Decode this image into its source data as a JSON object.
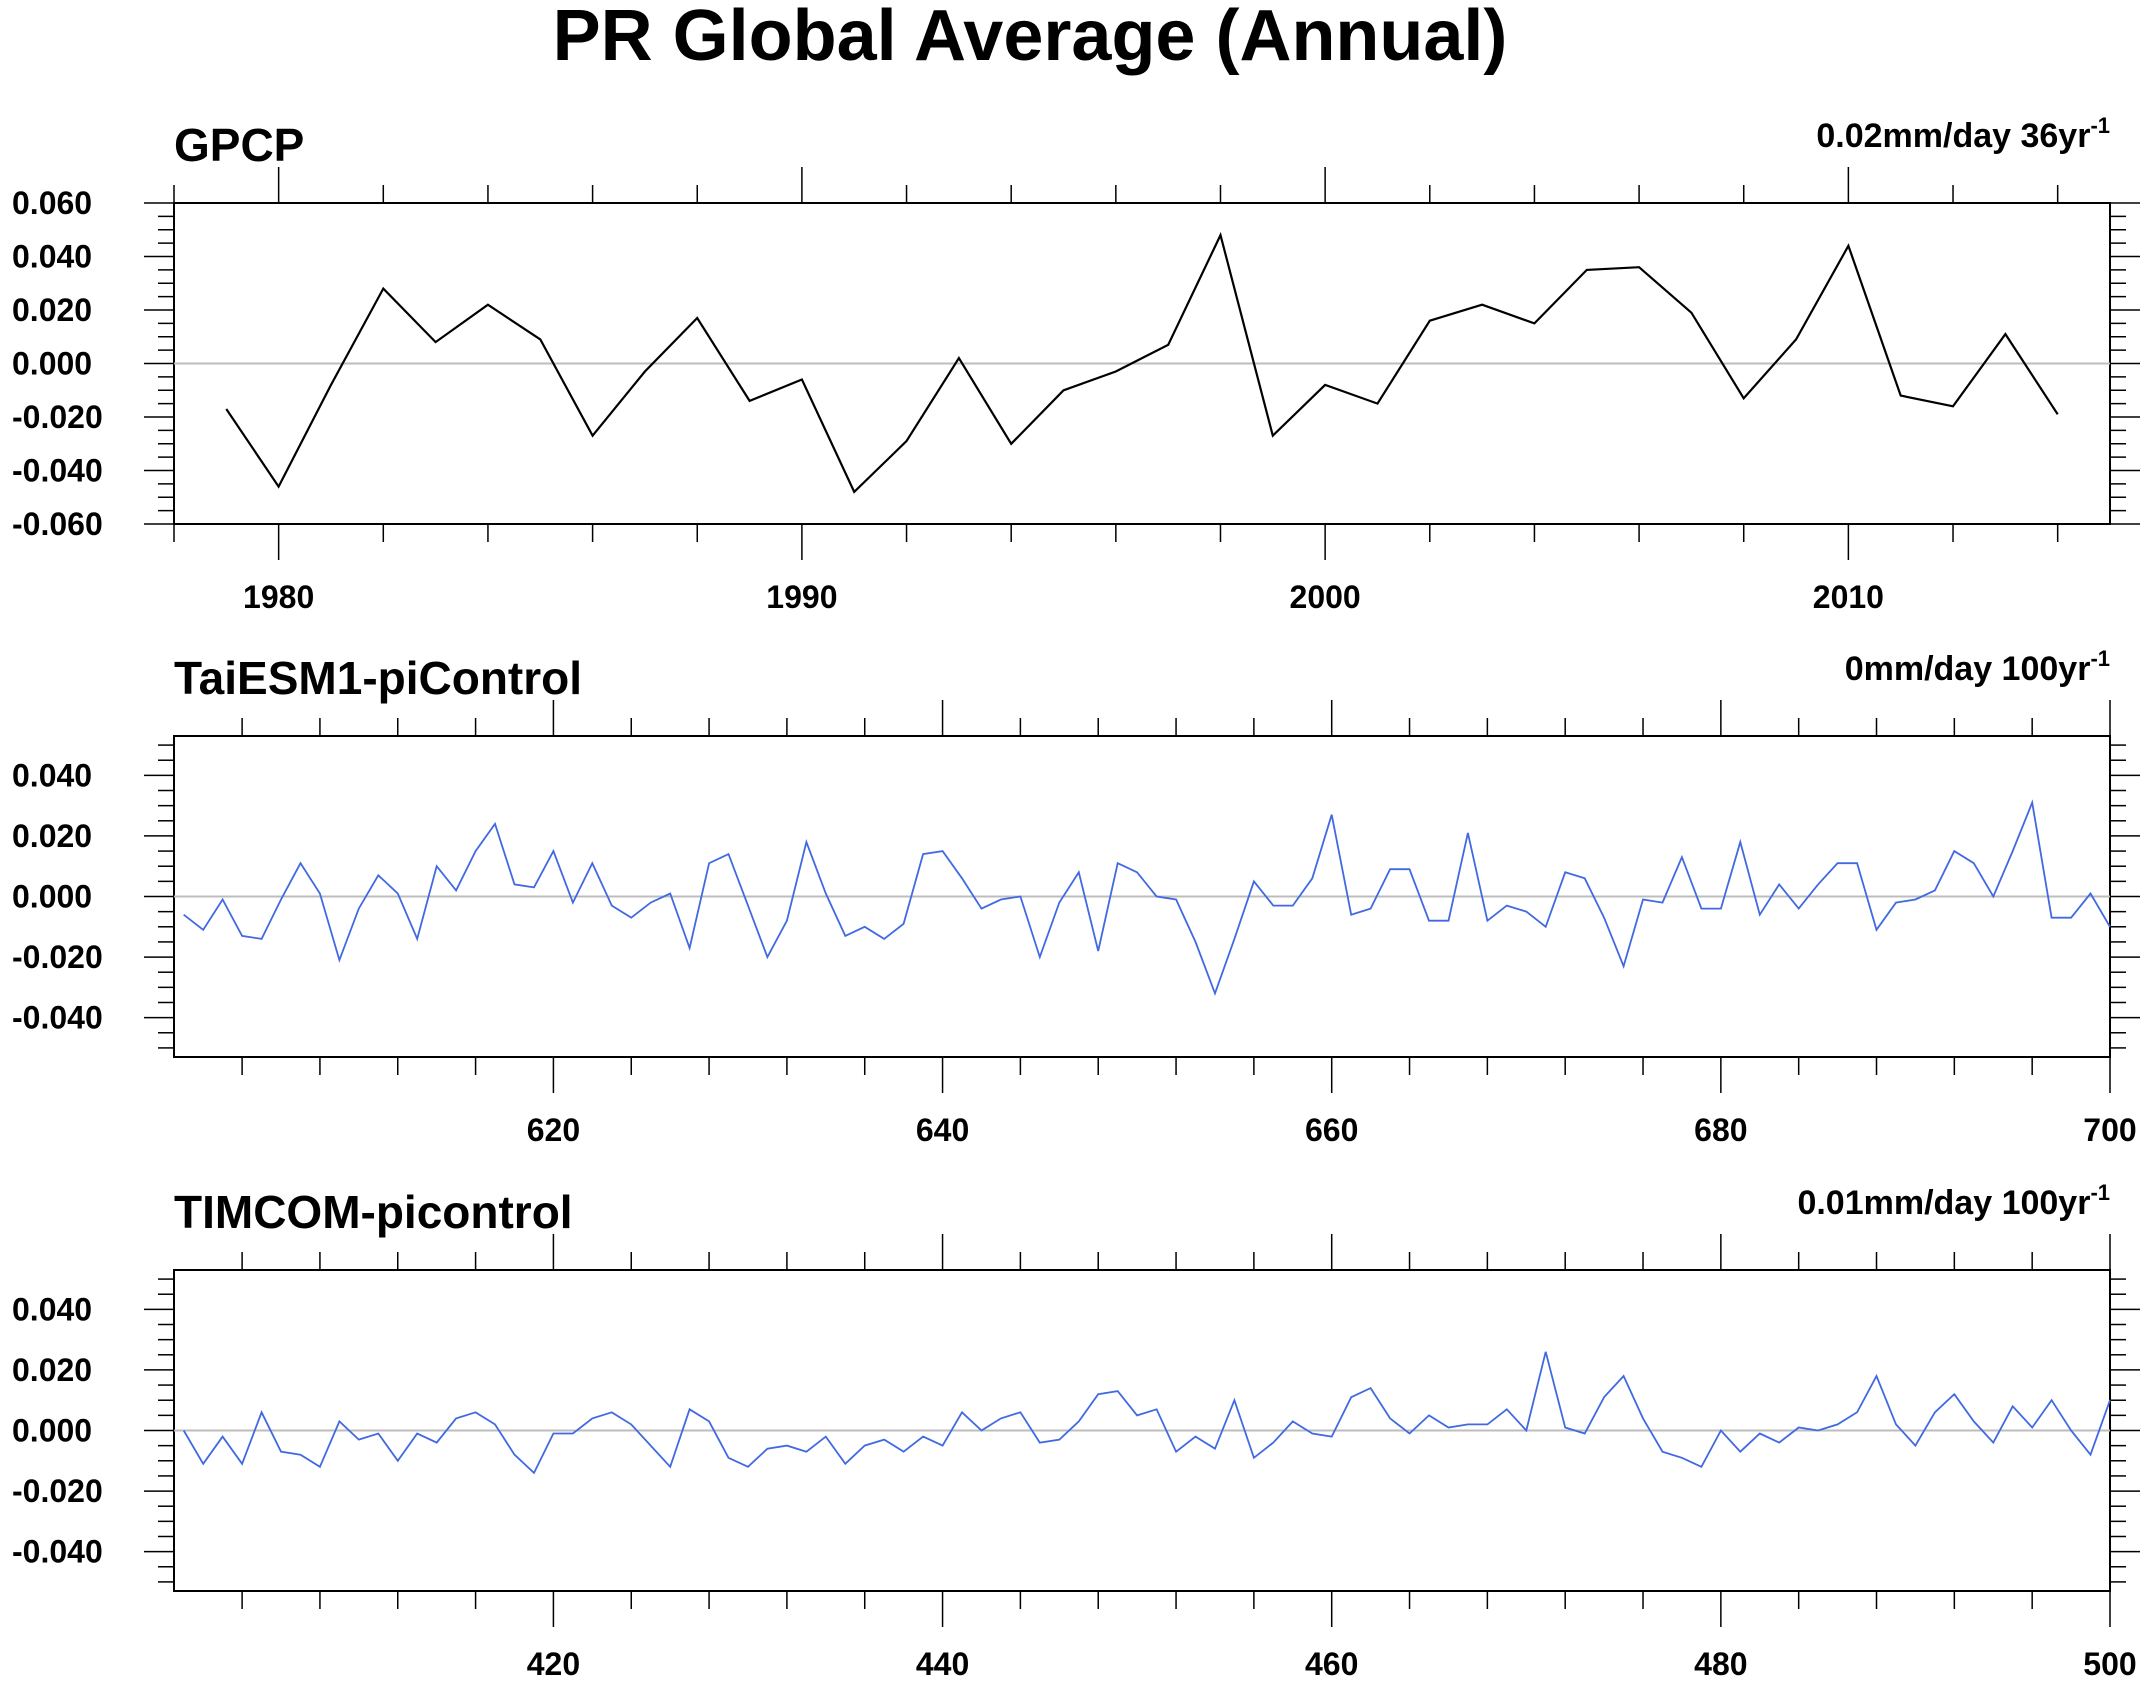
{
  "title": "PR Global Average (Annual)",
  "chart_data": [
    {
      "type": "line",
      "title": "GPCP",
      "trend_label": "0.02mm/day 36yr",
      "trend_superscript": "-1",
      "color": "#000000",
      "xlim": [
        1978,
        2015
      ],
      "ylim": [
        -0.06,
        0.06
      ],
      "xticks": [
        1980,
        1990,
        2000,
        2010
      ],
      "xtick_labels": [
        "1980",
        "1990",
        "2000",
        "2010"
      ],
      "yticks": [
        -0.06,
        -0.04,
        -0.02,
        0.0,
        0.02,
        0.04,
        0.06
      ],
      "ytick_labels": [
        "-0.060",
        "-0.040",
        "-0.020",
        "0.000",
        "0.020",
        "0.040",
        "0.060"
      ],
      "zero_line": true,
      "x_start": 1979,
      "values": [
        -0.017,
        -0.046,
        -0.008,
        0.028,
        0.008,
        0.022,
        0.009,
        -0.027,
        -0.003,
        0.017,
        -0.014,
        -0.006,
        -0.048,
        -0.029,
        0.002,
        -0.03,
        -0.01,
        -0.003,
        0.007,
        0.048,
        -0.027,
        -0.008,
        -0.015,
        0.016,
        0.022,
        0.015,
        0.035,
        0.036,
        0.019,
        -0.013,
        0.009,
        0.044,
        -0.012,
        -0.016,
        0.011,
        -0.019
      ]
    },
    {
      "type": "line",
      "title": "TaiESM1-piControl",
      "trend_label": "0mm/day 100yr",
      "trend_superscript": "-1",
      "color": "#4169e1",
      "xlim": [
        600.5,
        700
      ],
      "ylim": [
        -0.053,
        0.053
      ],
      "xticks": [
        620,
        640,
        660,
        680,
        700
      ],
      "xtick_labels": [
        "620",
        "640",
        "660",
        "680",
        "700"
      ],
      "yticks": [
        -0.04,
        -0.02,
        0.0,
        0.02,
        0.04
      ],
      "ytick_labels": [
        "-0.040",
        "-0.020",
        "0.000",
        "0.020",
        "0.040"
      ],
      "zero_line": true,
      "x_start": 601,
      "values": [
        -0.006,
        -0.011,
        -0.001,
        -0.013,
        -0.014,
        -0.001,
        0.011,
        0.001,
        -0.021,
        -0.004,
        0.007,
        0.001,
        -0.014,
        0.01,
        0.002,
        0.015,
        0.024,
        0.004,
        0.003,
        0.015,
        -0.002,
        0.011,
        -0.003,
        -0.007,
        -0.002,
        0.001,
        -0.017,
        0.011,
        0.014,
        -0.003,
        -0.02,
        -0.008,
        0.018,
        0.001,
        -0.013,
        -0.01,
        -0.014,
        -0.009,
        0.014,
        0.015,
        0.006,
        -0.004,
        -0.001,
        0.0,
        -0.02,
        -0.002,
        0.008,
        -0.018,
        0.011,
        0.008,
        0.0,
        -0.001,
        -0.015,
        -0.032,
        -0.014,
        0.005,
        -0.003,
        -0.003,
        0.006,
        0.027,
        -0.006,
        -0.004,
        0.009,
        0.009,
        -0.008,
        -0.008,
        0.021,
        -0.008,
        -0.003,
        -0.005,
        -0.01,
        0.008,
        0.006,
        -0.007,
        -0.023,
        -0.001,
        -0.002,
        0.013,
        -0.004,
        -0.004,
        0.018,
        -0.006,
        0.004,
        -0.004,
        0.004,
        0.011,
        0.011,
        -0.011,
        -0.002,
        -0.001,
        0.002,
        0.015,
        0.011,
        0.0,
        0.015,
        0.031,
        -0.007,
        -0.007,
        0.001,
        -0.01
      ]
    },
    {
      "type": "line",
      "title": "TIMCOM-picontrol",
      "trend_label": "0.01mm/day 100yr",
      "trend_superscript": "-1",
      "color": "#4169e1",
      "xlim": [
        400.5,
        500
      ],
      "ylim": [
        -0.053,
        0.053
      ],
      "xticks": [
        420,
        440,
        460,
        480,
        500
      ],
      "xtick_labels": [
        "420",
        "440",
        "460",
        "480",
        "500"
      ],
      "yticks": [
        -0.04,
        -0.02,
        0.0,
        0.02,
        0.04
      ],
      "ytick_labels": [
        "-0.040",
        "-0.020",
        "0.000",
        "0.020",
        "0.040"
      ],
      "zero_line": true,
      "x_start": 401,
      "values": [
        0.0,
        -0.011,
        -0.002,
        -0.011,
        0.006,
        -0.007,
        -0.008,
        -0.012,
        0.003,
        -0.003,
        -0.001,
        -0.01,
        -0.001,
        -0.004,
        0.004,
        0.006,
        0.002,
        -0.008,
        -0.014,
        -0.001,
        -0.001,
        0.004,
        0.006,
        0.002,
        -0.005,
        -0.012,
        0.007,
        0.003,
        -0.009,
        -0.012,
        -0.006,
        -0.005,
        -0.007,
        -0.002,
        -0.011,
        -0.005,
        -0.003,
        -0.007,
        -0.002,
        -0.005,
        0.006,
        0.0,
        0.004,
        0.006,
        -0.004,
        -0.003,
        0.003,
        0.012,
        0.013,
        0.005,
        0.007,
        -0.007,
        -0.002,
        -0.006,
        0.01,
        -0.009,
        -0.004,
        0.003,
        -0.001,
        -0.002,
        0.011,
        0.014,
        0.004,
        -0.001,
        0.005,
        0.001,
        0.002,
        0.002,
        0.007,
        0.0,
        0.026,
        0.001,
        -0.001,
        0.011,
        0.018,
        0.004,
        -0.007,
        -0.009,
        -0.012,
        0.0,
        -0.007,
        -0.001,
        -0.004,
        0.001,
        0.0,
        0.002,
        0.006,
        0.018,
        0.002,
        -0.005,
        0.006,
        0.012,
        0.003,
        -0.004,
        0.008,
        0.001,
        0.01,
        0.0,
        -0.008,
        0.01
      ]
    }
  ]
}
